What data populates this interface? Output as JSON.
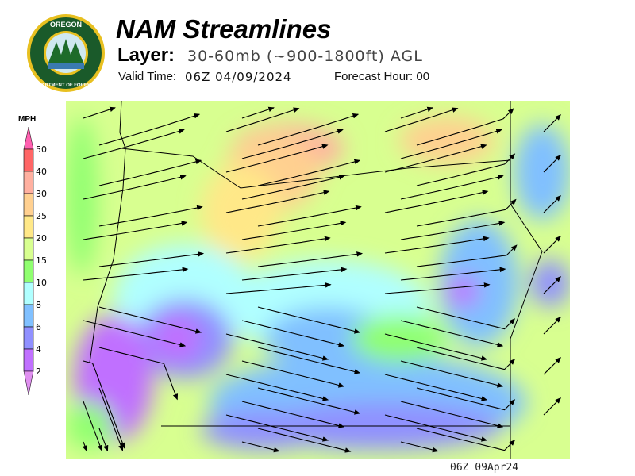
{
  "logo": {
    "text_top": "OREGON",
    "text_bottom": "DEPARTMENT OF FORESTRY",
    "colors": {
      "ring": "#1a5a2a",
      "gold": "#e8c020"
    }
  },
  "header": {
    "title": "NAM Streamlines",
    "layer_label": "Layer:",
    "layer_value": "30-60mb (~900-1800ft) AGL",
    "valid_label": "Valid Time:",
    "valid_value": "06Z 04/09/2024",
    "forecast_hour": "Forecast Hour: 00"
  },
  "legend": {
    "unit": "MPH",
    "levels": [
      "50",
      "40",
      "30",
      "25",
      "20",
      "15",
      "10",
      "8",
      "6",
      "4",
      "2"
    ],
    "colors": [
      "#ff6666",
      "#ffb0a0",
      "#ffd090",
      "#ffe888",
      "#d8ff90",
      "#90ff70",
      "#b0ffff",
      "#80c0ff",
      "#9090ff",
      "#c070ff"
    ],
    "over_color": "#ff60b0",
    "under_color": "#e090f0"
  },
  "footer": {
    "timestamp": "06Z 09Apr24"
  }
}
